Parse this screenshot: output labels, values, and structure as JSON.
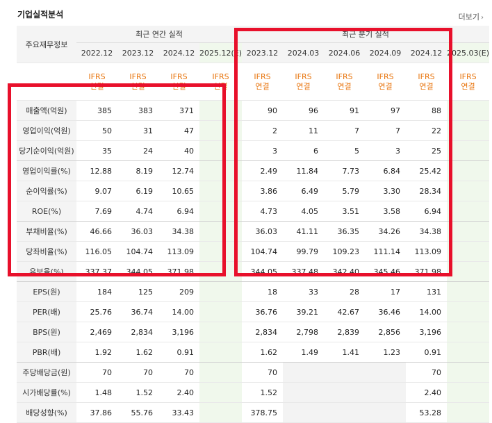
{
  "section_title": "기업실적분석",
  "more_link": "더보기",
  "more_icon": "chevron-right-icon",
  "header": {
    "row_label": "주요재무정보",
    "annual_group": "최근 연간 실적",
    "quarterly_group": "최근 분기 실적",
    "annual_periods": [
      "2022.12",
      "2023.12",
      "2024.12",
      "2025.12(E)"
    ],
    "quarterly_periods": [
      "2023.12",
      "2024.03",
      "2024.06",
      "2024.09",
      "2024.12",
      "2025.03(E)"
    ],
    "ifrs_top": "IFRS",
    "ifrs_bottom": "연결"
  },
  "rows": [
    {
      "label": "매출액(억원)",
      "annual": [
        "385",
        "383",
        "371",
        ""
      ],
      "quarterly": [
        "90",
        "96",
        "91",
        "97",
        "88",
        ""
      ]
    },
    {
      "label": "영업이익(억원)",
      "annual": [
        "50",
        "31",
        "47",
        ""
      ],
      "quarterly": [
        "2",
        "11",
        "7",
        "7",
        "22",
        ""
      ]
    },
    {
      "label": "당기순이익(억원)",
      "annual": [
        "35",
        "24",
        "40",
        ""
      ],
      "quarterly": [
        "3",
        "6",
        "5",
        "3",
        "25",
        ""
      ]
    },
    {
      "label": "영업이익률(%)",
      "annual": [
        "12.88",
        "8.19",
        "12.74",
        ""
      ],
      "quarterly": [
        "2.49",
        "11.84",
        "7.73",
        "6.84",
        "25.42",
        ""
      ]
    },
    {
      "label": "순이익률(%)",
      "annual": [
        "9.07",
        "6.19",
        "10.65",
        ""
      ],
      "quarterly": [
        "3.86",
        "6.49",
        "5.79",
        "3.30",
        "28.34",
        ""
      ]
    },
    {
      "label": "ROE(%)",
      "annual": [
        "7.69",
        "4.74",
        "6.94",
        ""
      ],
      "quarterly": [
        "4.73",
        "4.05",
        "3.51",
        "3.58",
        "6.94",
        ""
      ]
    },
    {
      "label": "부채비율(%)",
      "annual": [
        "46.66",
        "36.03",
        "34.38",
        ""
      ],
      "quarterly": [
        "36.03",
        "41.11",
        "36.35",
        "34.26",
        "34.38",
        ""
      ]
    },
    {
      "label": "당좌비율(%)",
      "annual": [
        "116.05",
        "104.74",
        "113.09",
        ""
      ],
      "quarterly": [
        "104.74",
        "99.79",
        "109.23",
        "111.14",
        "113.09",
        ""
      ]
    },
    {
      "label": "유보율(%)",
      "annual": [
        "337.37",
        "344.05",
        "371.98",
        ""
      ],
      "quarterly": [
        "344.05",
        "337.48",
        "342.40",
        "345.46",
        "371.98",
        ""
      ]
    },
    {
      "label": "EPS(원)",
      "annual": [
        "184",
        "125",
        "209",
        ""
      ],
      "quarterly": [
        "18",
        "33",
        "28",
        "17",
        "131",
        ""
      ]
    },
    {
      "label": "PER(배)",
      "annual": [
        "25.76",
        "36.74",
        "14.00",
        ""
      ],
      "quarterly": [
        "36.76",
        "39.21",
        "42.67",
        "36.46",
        "14.00",
        ""
      ]
    },
    {
      "label": "BPS(원)",
      "annual": [
        "2,469",
        "2,834",
        "3,196",
        ""
      ],
      "quarterly": [
        "2,834",
        "2,798",
        "2,839",
        "2,856",
        "3,196",
        ""
      ]
    },
    {
      "label": "PBR(배)",
      "annual": [
        "1.92",
        "1.62",
        "0.91",
        ""
      ],
      "quarterly": [
        "1.62",
        "1.49",
        "1.41",
        "1.23",
        "0.91",
        ""
      ]
    },
    {
      "label": "주당배당금(원)",
      "annual": [
        "70",
        "70",
        "70",
        ""
      ],
      "quarterly": [
        "70",
        "",
        "",
        "",
        "70",
        ""
      ]
    },
    {
      "label": "시가배당률(%)",
      "annual": [
        "1.48",
        "1.52",
        "2.40",
        ""
      ],
      "quarterly": [
        "1.52",
        "",
        "",
        "",
        "2.40",
        ""
      ]
    },
    {
      "label": "배당성향(%)",
      "annual": [
        "37.86",
        "55.76",
        "33.43",
        ""
      ],
      "quarterly": [
        "378.75",
        "",
        "",
        "",
        "53.28",
        ""
      ]
    }
  ],
  "highlight_color": "#e8102b"
}
